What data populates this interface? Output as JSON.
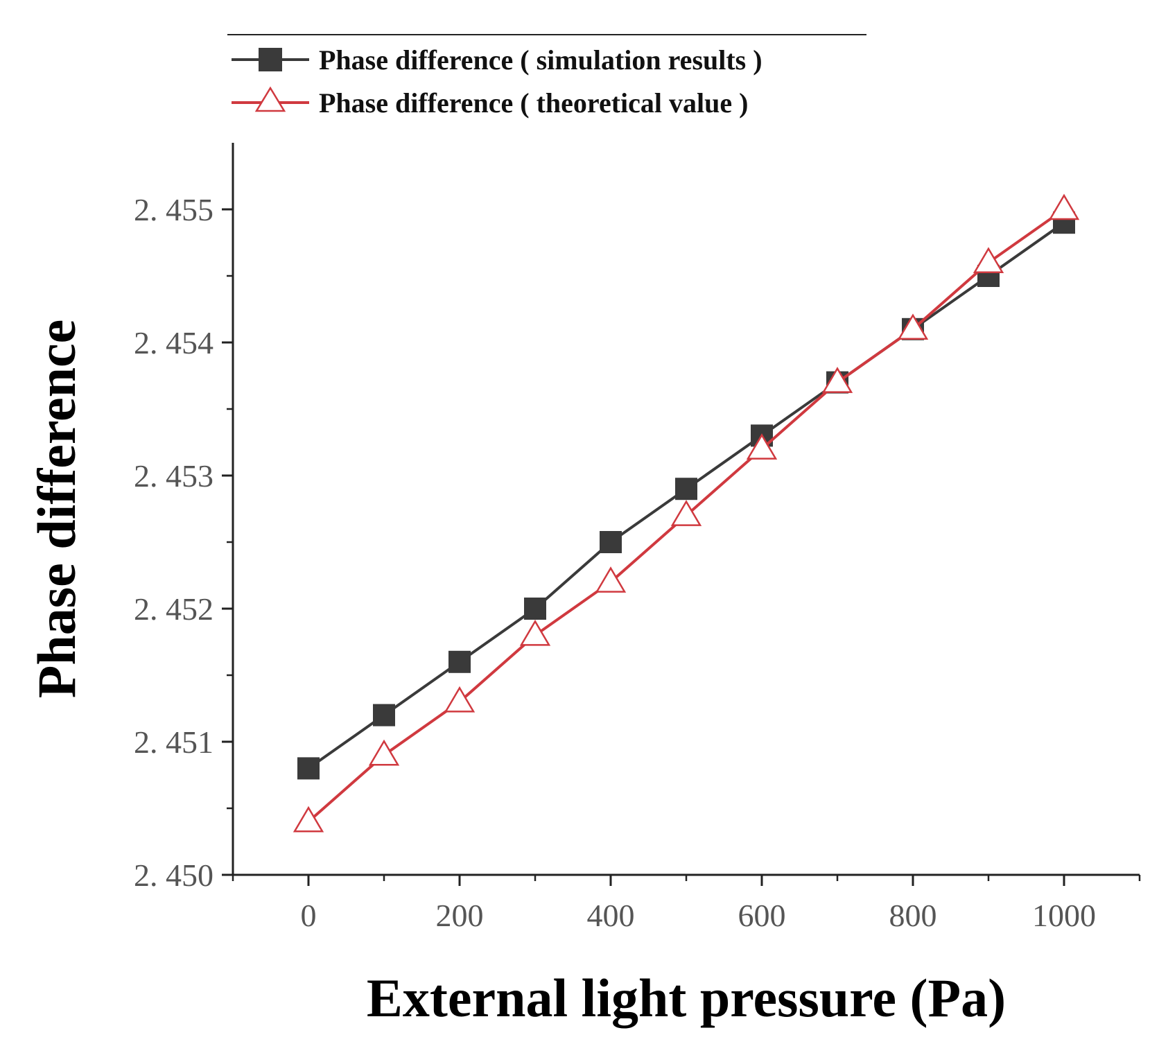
{
  "chart_data": {
    "type": "line",
    "title": "",
    "xlabel": "External light pressure (Pa)",
    "ylabel": "Phase difference",
    "xlim": [
      -100,
      1100
    ],
    "ylim": [
      2.45,
      2.4555
    ],
    "x_ticks": [
      0,
      200,
      400,
      600,
      800,
      1000
    ],
    "x_tick_labels": [
      "0",
      "200",
      "400",
      "600",
      "800",
      "1000"
    ],
    "x_minor_ticks": [
      -100,
      100,
      300,
      500,
      700,
      900,
      1100
    ],
    "y_ticks": [
      2.45,
      2.451,
      2.452,
      2.453,
      2.454,
      2.455
    ],
    "y_tick_labels": [
      "2. 450",
      "2. 451",
      "2. 452",
      "2. 453",
      "2. 454",
      "2. 455"
    ],
    "y_minor_ticks": [
      2.4505,
      2.4515,
      2.4525,
      2.4535,
      2.4545
    ],
    "grid": false,
    "legend_position": "top",
    "x": [
      0,
      100,
      200,
      300,
      400,
      500,
      600,
      700,
      800,
      900,
      1000
    ],
    "series": [
      {
        "name": "Phase difference ( simulation results )",
        "marker": "square",
        "color": "#3a3a3a",
        "values": [
          2.4508,
          2.4512,
          2.4516,
          2.452,
          2.4525,
          2.4529,
          2.4533,
          2.4537,
          2.4541,
          2.4545,
          2.4549
        ]
      },
      {
        "name": "Phase difference ( theoretical value )",
        "marker": "triangle-open",
        "color": "#d0393f",
        "values": [
          2.4504,
          2.4509,
          2.4513,
          2.4518,
          2.4522,
          2.4527,
          2.4532,
          2.4537,
          2.4541,
          2.4546,
          2.455
        ]
      }
    ]
  }
}
